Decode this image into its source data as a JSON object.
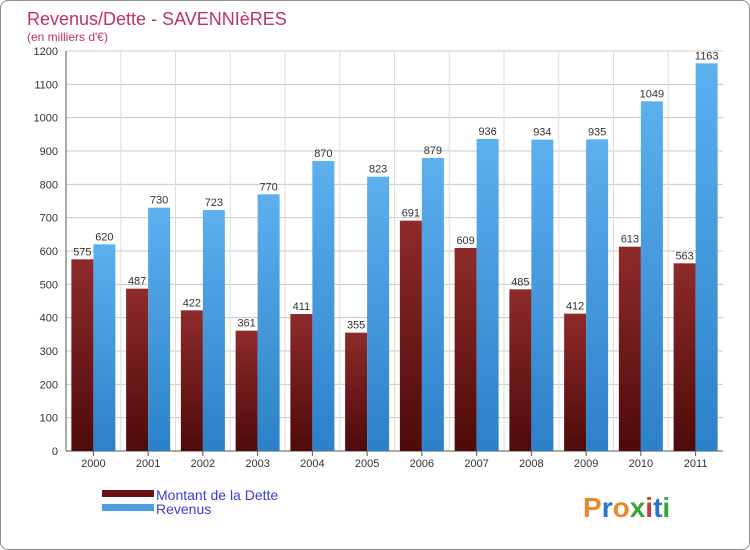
{
  "chart_data": {
    "type": "bar",
    "title": "Revenus/Dette - SAVENNIèRES",
    "subtitle": "(en milliers d'€)",
    "categories": [
      "2000",
      "2001",
      "2002",
      "2003",
      "2004",
      "2005",
      "2006",
      "2007",
      "2008",
      "2009",
      "2010",
      "2011"
    ],
    "series": [
      {
        "name": "Montant de la Dette",
        "color": "#7a1c1c",
        "values": [
          575,
          487,
          422,
          361,
          411,
          355,
          691,
          609,
          485,
          412,
          613,
          563
        ]
      },
      {
        "name": "Revenus",
        "color": "#4a9de0",
        "values": [
          620,
          730,
          723,
          770,
          870,
          823,
          879,
          936,
          934,
          935,
          1049,
          1163
        ]
      }
    ],
    "ylim": [
      0,
      1200
    ],
    "yticks": [
      0,
      100,
      200,
      300,
      400,
      500,
      600,
      700,
      800,
      900,
      1000,
      1100,
      1200
    ],
    "grid": true,
    "legend": "bottom-left"
  },
  "logo": {
    "letters": [
      "P",
      "r",
      "o",
      "x",
      "i",
      "t",
      "i"
    ],
    "colors": [
      "#e8892b",
      "#2a74c9",
      "#e8892b",
      "#3aa63a",
      "#c43d3d",
      "#2a74c9",
      "#3aa63a"
    ]
  }
}
